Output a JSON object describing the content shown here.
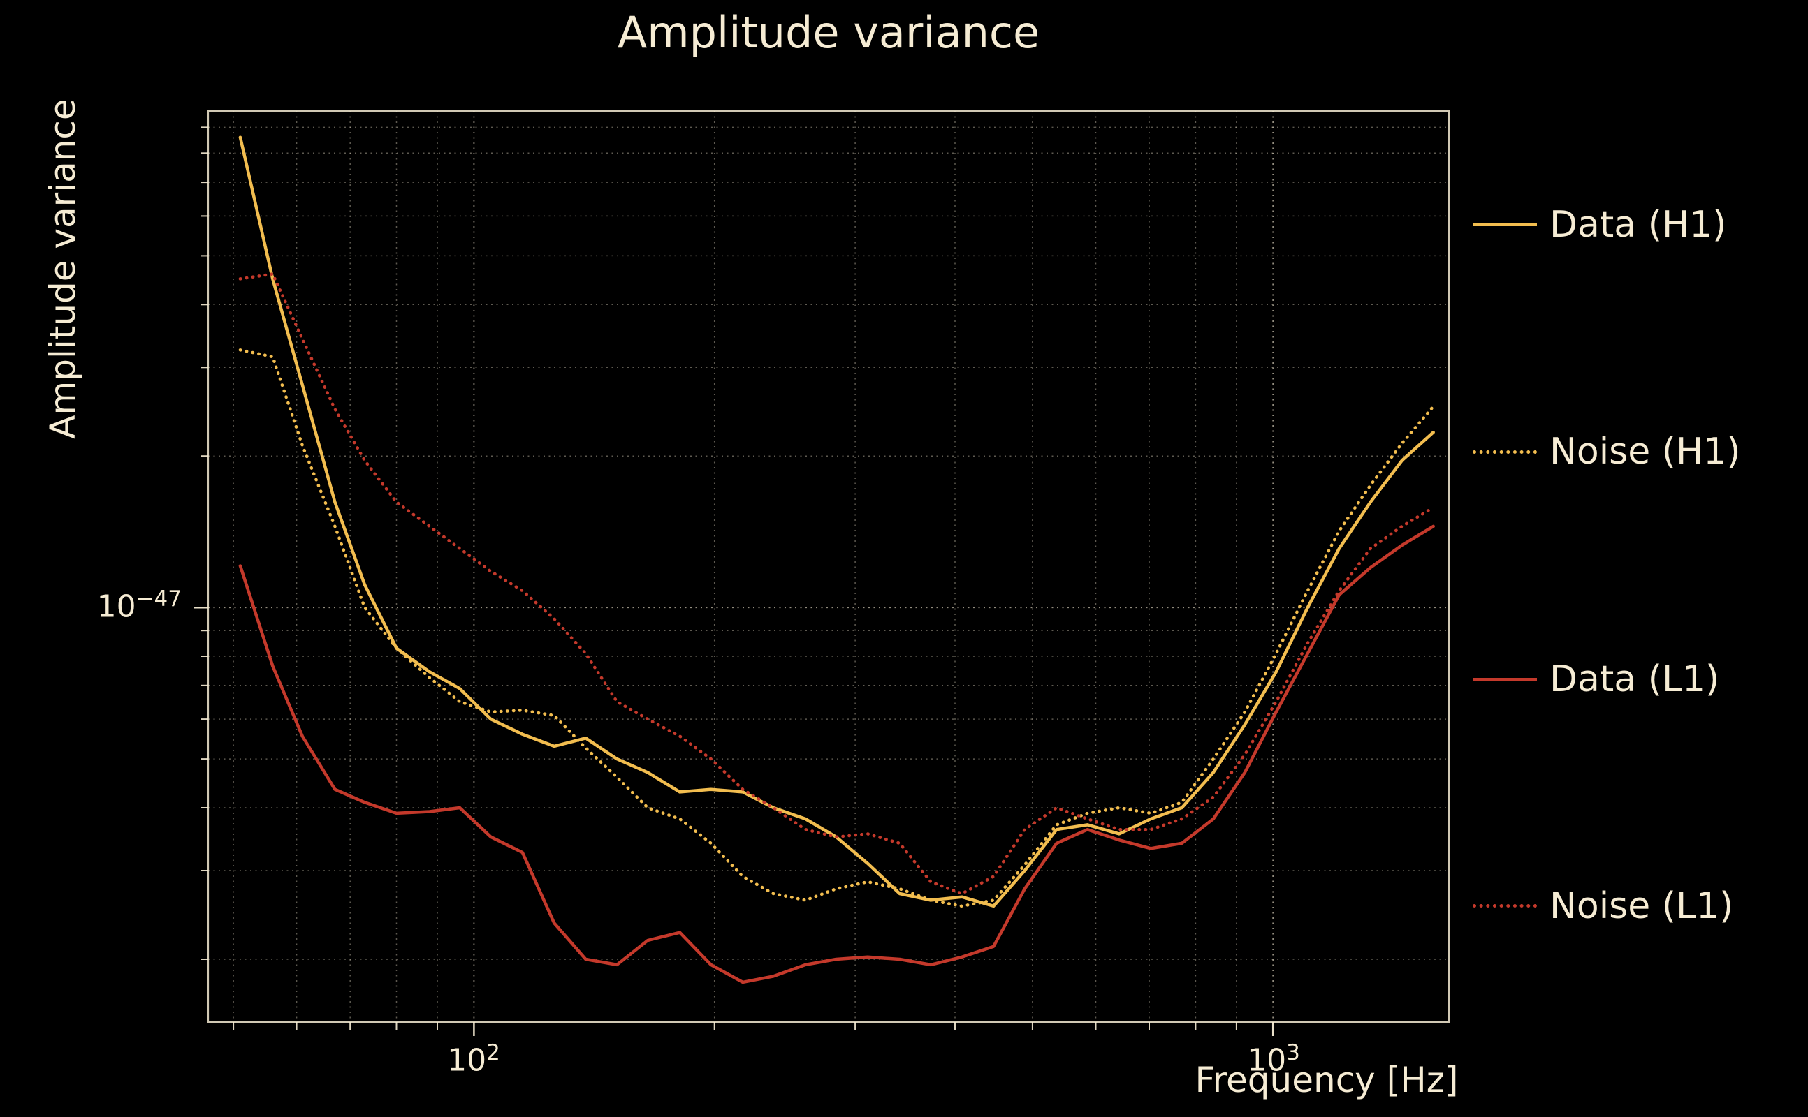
{
  "page": {
    "background": "#000000",
    "text_color": "#f6ecd4"
  },
  "chart_data": {
    "type": "line",
    "title": "Amplitude variance",
    "xlabel": "Frequency [Hz]",
    "ylabel": "Amplitude variance",
    "x_scale": "log",
    "y_scale": "log",
    "grid": "major-and-minor, dotted",
    "legend_position": "right-outside-vertical",
    "xlim": [
      46.5,
      1660
    ],
    "value_unit": "1e-48",
    "ylim_1e48": [
      1.5,
      97
    ],
    "x_ticks": [
      {
        "value": 100,
        "base": "10",
        "exp": "2"
      },
      {
        "value": 1000,
        "base": "10",
        "exp": "3"
      }
    ],
    "y_ticks": [
      {
        "value_1e48": 10,
        "base": "10",
        "exp": "−47"
      }
    ],
    "colors": {
      "h1": "#f2bd4f",
      "l1": "#c4392b",
      "grid": "#f6ecd4",
      "spine": "#f6ecd4"
    },
    "frequencies_hz": [
      51,
      56,
      61,
      67,
      73,
      80,
      88,
      96,
      105,
      115,
      126,
      138,
      151,
      165,
      181,
      198,
      217,
      237,
      260,
      284,
      311,
      341,
      373,
      408,
      447,
      489,
      536,
      586,
      642,
      703,
      769,
      842,
      922,
      1009,
      1105,
      1210,
      1324,
      1450,
      1587
    ],
    "series": [
      {
        "name": "Data (H1)",
        "color": "#f2bd4f",
        "style": "solid",
        "values_1e48": [
          86,
          45,
          27.7,
          16.2,
          11.1,
          8.3,
          7.45,
          6.9,
          6.0,
          5.6,
          5.3,
          5.5,
          5.0,
          4.7,
          4.3,
          4.35,
          4.3,
          4.0,
          3.8,
          3.5,
          3.1,
          2.7,
          2.62,
          2.66,
          2.55,
          3.0,
          3.62,
          3.7,
          3.55,
          3.8,
          4.0,
          4.7,
          5.85,
          7.45,
          10.0,
          13.1,
          16.2,
          19.6,
          22.3
        ]
      },
      {
        "name": "Noise (H1)",
        "color": "#f2bd4f",
        "style": "dotted",
        "values_1e48": [
          32.5,
          31.5,
          21,
          14.5,
          10,
          8.3,
          7.25,
          6.5,
          6.2,
          6.25,
          6.1,
          5.26,
          4.6,
          4.0,
          3.8,
          3.4,
          2.92,
          2.7,
          2.62,
          2.76,
          2.85,
          2.76,
          2.62,
          2.55,
          2.62,
          3.08,
          3.7,
          3.9,
          4.0,
          3.9,
          4.1,
          5.0,
          6.2,
          8.1,
          10.8,
          14.2,
          17.5,
          21.2,
          25.1
        ]
      },
      {
        "name": "Data (L1)",
        "color": "#c4392b",
        "style": "solid",
        "values_1e48": [
          12.1,
          7.65,
          5.55,
          4.35,
          4.1,
          3.9,
          3.93,
          4.0,
          3.5,
          3.26,
          2.36,
          2.0,
          1.95,
          2.18,
          2.26,
          1.95,
          1.8,
          1.85,
          1.95,
          2.0,
          2.02,
          2.0,
          1.95,
          2.02,
          2.12,
          2.76,
          3.4,
          3.62,
          3.45,
          3.32,
          3.4,
          3.8,
          4.7,
          6.2,
          8.1,
          10.6,
          12.0,
          13.3,
          14.5
        ]
      },
      {
        "name": "Noise (L1)",
        "color": "#c4392b",
        "style": "dotted",
        "values_1e48": [
          45,
          46,
          34.2,
          24.8,
          19.6,
          16.2,
          14.5,
          13.1,
          11.8,
          10.8,
          9.5,
          8.1,
          6.5,
          6.0,
          5.55,
          5.0,
          4.35,
          4.0,
          3.62,
          3.5,
          3.55,
          3.4,
          2.85,
          2.7,
          2.92,
          3.62,
          4.0,
          3.8,
          3.62,
          3.62,
          3.8,
          4.2,
          5.1,
          6.5,
          8.5,
          10.8,
          13.1,
          14.5,
          15.8
        ]
      }
    ]
  }
}
